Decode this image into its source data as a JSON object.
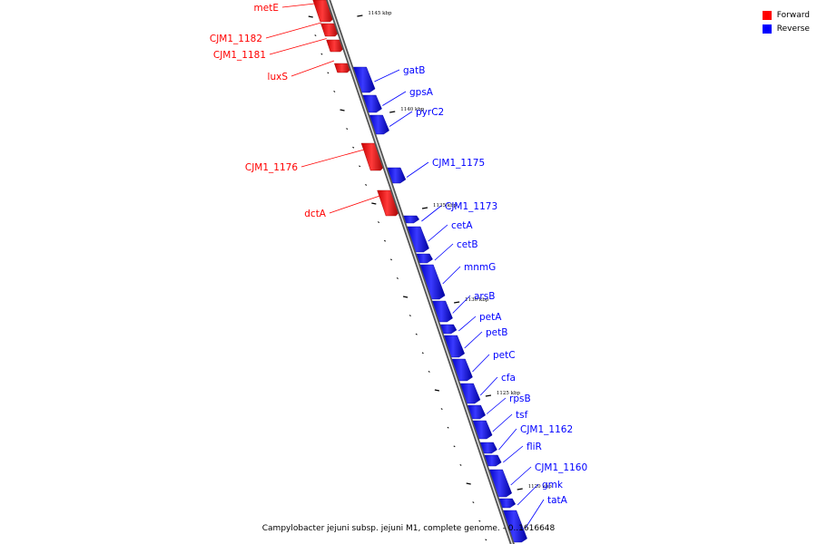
{
  "legend": {
    "forward_label": "Forward",
    "reverse_label": "Reverse",
    "forward_color": "#ff0000",
    "reverse_color": "#0000ff"
  },
  "caption": "Campylobacter jejuni subsp. jejuni M1, complete genome. - 0..1616648",
  "ticks": [
    {
      "label": "1145 kbp",
      "kbp": 1145
    },
    {
      "label": "1140 kbp",
      "kbp": 1140
    },
    {
      "label": "1135 kbp",
      "kbp": 1135
    },
    {
      "label": "1130 kbp",
      "kbp": 1130
    },
    {
      "label": "1125 kbp",
      "kbp": 1125
    },
    {
      "label": "1120 kbp",
      "kbp": 1120
    }
  ],
  "genes": [
    {
      "name": "metE",
      "strand": "forward"
    },
    {
      "name": "CJM1_1182",
      "strand": "forward"
    },
    {
      "name": "CJM1_1181",
      "strand": "forward"
    },
    {
      "name": "luxS",
      "strand": "forward"
    },
    {
      "name": "gatB",
      "strand": "reverse"
    },
    {
      "name": "gpsA",
      "strand": "reverse"
    },
    {
      "name": "pyrC2",
      "strand": "reverse"
    },
    {
      "name": "CJM1_1176",
      "strand": "forward"
    },
    {
      "name": "CJM1_1175",
      "strand": "reverse"
    },
    {
      "name": "dctA",
      "strand": "forward"
    },
    {
      "name": "CJM1_1173",
      "strand": "reverse"
    },
    {
      "name": "cetA",
      "strand": "reverse"
    },
    {
      "name": "cetB",
      "strand": "reverse"
    },
    {
      "name": "mnmG",
      "strand": "reverse"
    },
    {
      "name": "arsB",
      "strand": "reverse"
    },
    {
      "name": "petA",
      "strand": "reverse"
    },
    {
      "name": "petB",
      "strand": "reverse"
    },
    {
      "name": "petC",
      "strand": "reverse"
    },
    {
      "name": "cfa",
      "strand": "reverse"
    },
    {
      "name": "rpsB",
      "strand": "reverse"
    },
    {
      "name": "tsf",
      "strand": "reverse"
    },
    {
      "name": "CJM1_1162",
      "strand": "reverse"
    },
    {
      "name": "fliR",
      "strand": "reverse"
    },
    {
      "name": "CJM1_1160",
      "strand": "reverse"
    },
    {
      "name": "gmk",
      "strand": "reverse"
    },
    {
      "name": "tatA",
      "strand": "reverse"
    }
  ]
}
